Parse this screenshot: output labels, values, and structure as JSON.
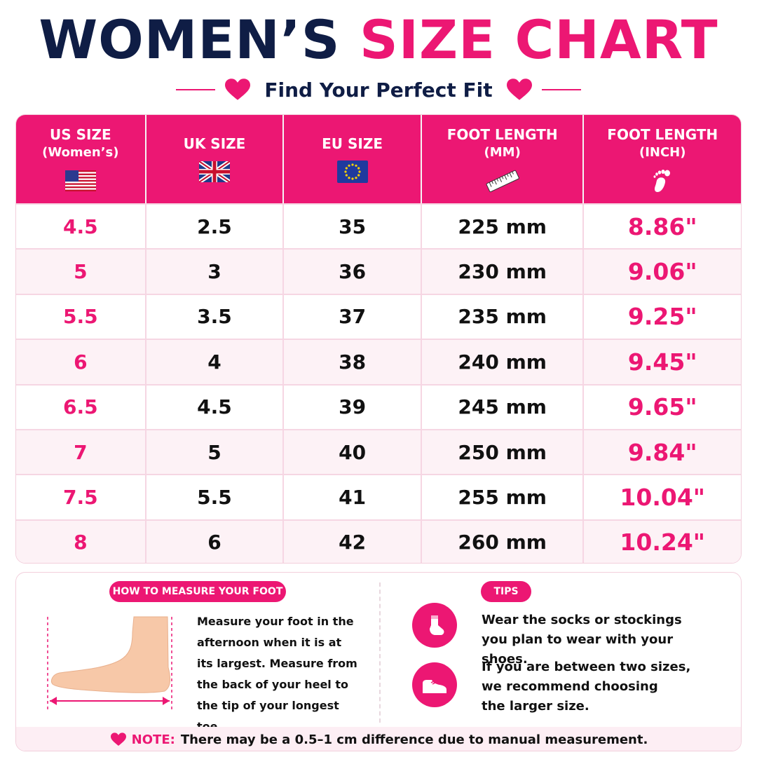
{
  "title": {
    "part1": "WOMEN’S",
    "part2": "SIZE CHART"
  },
  "subtitle": "Find Your Perfect Fit",
  "table": {
    "headers": [
      {
        "line1": "US SIZE",
        "line2": "(Women’s)",
        "icon": "us-flag-icon"
      },
      {
        "line1": "UK SIZE",
        "line2": "",
        "icon": "uk-flag-icon"
      },
      {
        "line1": "EU SIZE",
        "line2": "",
        "icon": "eu-flag-icon"
      },
      {
        "line1": "FOOT LENGTH",
        "line2": "(MM)",
        "icon": "ruler-icon"
      },
      {
        "line1": "FOOT LENGTH",
        "line2": "(INCH)",
        "icon": "footprint-icon"
      }
    ],
    "rows": [
      [
        "4.5",
        "2.5",
        "35",
        "225 mm",
        "8.86\""
      ],
      [
        "5",
        "3",
        "36",
        "230 mm",
        "9.06\""
      ],
      [
        "5.5",
        "3.5",
        "37",
        "235 mm",
        "9.25\""
      ],
      [
        "6",
        "4",
        "38",
        "240 mm",
        "9.45\""
      ],
      [
        "6.5",
        "4.5",
        "39",
        "245 mm",
        "9.65\""
      ],
      [
        "7",
        "5",
        "40",
        "250 mm",
        "9.84\""
      ],
      [
        "7.5",
        "5.5",
        "41",
        "255 mm",
        "10.04\""
      ],
      [
        "8",
        "6",
        "42",
        "260 mm",
        "10.24\""
      ]
    ]
  },
  "how_to": {
    "label": "HOW TO MEASURE YOUR FOOT",
    "lines": [
      "Measure your foot in the",
      "afternoon when it is at",
      "its largest. Measure from",
      "the back of your heel to",
      "the tip of your longest toe."
    ]
  },
  "tips": {
    "label": "TIPS",
    "tip1": [
      "Wear the socks or stockings",
      "you plan to wear with your shoes."
    ],
    "tip2": [
      "If you are between two sizes,",
      "we recommend choosing",
      "the larger size."
    ]
  },
  "note": {
    "label": "NOTE:",
    "text": "There may be a 0.5–1 cm difference due to manual measurement."
  },
  "colors": {
    "accent": "#ec1773",
    "navy": "#0f1d45",
    "row_alt": "#fdf2f6"
  }
}
